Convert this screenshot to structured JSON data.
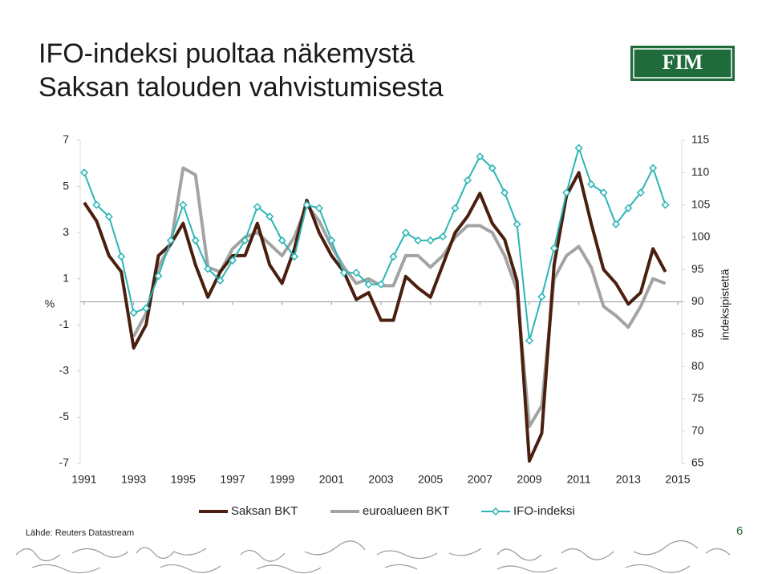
{
  "logo": "FIM",
  "source": "Lähde: Reuters Datastream",
  "page_number": "6",
  "chart_data": {
    "type": "line",
    "title": [
      "IFO-indeksi puoltaa näkemystä",
      "Saksan talouden vahvistumisesta"
    ],
    "y_label": "%",
    "y2_label": "indeksipistettä",
    "xlim": [
      1991,
      2015
    ],
    "xticks": [
      1991,
      1993,
      1995,
      1997,
      1999,
      2001,
      2003,
      2005,
      2007,
      2009,
      2011,
      2013,
      2015
    ],
    "ylim": [
      -7,
      7
    ],
    "yticks": [
      7,
      5,
      3,
      1,
      -1,
      -3,
      -5,
      -7
    ],
    "y2lim": [
      65,
      115
    ],
    "y2ticks": [
      115,
      110,
      105,
      100,
      95,
      90,
      85,
      80,
      75,
      70,
      65
    ],
    "x": [
      1991,
      1991.5,
      1992,
      1992.5,
      1993,
      1993.5,
      1994,
      1994.5,
      1995,
      1995.5,
      1996,
      1996.5,
      1997,
      1997.5,
      1998,
      1998.5,
      1999,
      1999.5,
      2000,
      2000.5,
      2001,
      2001.5,
      2002,
      2002.5,
      2003,
      2003.5,
      2004,
      2004.5,
      2005,
      2005.5,
      2006,
      2006.5,
      2007,
      2007.5,
      2008,
      2008.5,
      2009,
      2009.5,
      2010,
      2010.5,
      2011,
      2011.5,
      2012,
      2012.5,
      2013,
      2013.5,
      2014,
      2014.5
    ],
    "series": [
      {
        "name": "Saksan BKT",
        "color": "#4a1f0f",
        "axis": "y",
        "marker": false,
        "values": [
          4.3,
          3.5,
          2,
          1.3,
          -2,
          -1,
          2,
          2.5,
          3.4,
          1.6,
          0.2,
          1.3,
          2,
          2,
          3.4,
          1.6,
          0.8,
          2.3,
          4.4,
          3,
          2,
          1.3,
          0.1,
          0.4,
          -0.8,
          -0.8,
          1.1,
          0.6,
          0.2,
          1.6,
          3,
          3.7,
          4.7,
          3.4,
          2.7,
          0.9,
          -6.9,
          -5.7,
          1.6,
          4.6,
          5.6,
          3.4,
          1.4,
          0.8,
          -0.1,
          0.4,
          2.3,
          1.3
        ]
      },
      {
        "name": "euroalueen BKT",
        "color": "#a3a3a3",
        "axis": "y",
        "marker": false,
        "values": [
          null,
          null,
          null,
          null,
          -1.5,
          -0.5,
          1.5,
          2.5,
          5.8,
          5.5,
          1.5,
          1.3,
          2.3,
          2.8,
          3,
          2.5,
          2,
          2.8,
          4.2,
          3.5,
          2.4,
          1.5,
          0.8,
          1,
          0.7,
          0.7,
          2,
          2,
          1.5,
          2,
          2.8,
          3.3,
          3.3,
          3,
          2,
          0.5,
          -5.4,
          -4.5,
          1,
          2,
          2.4,
          1.5,
          -0.2,
          -0.6,
          -1.1,
          -0.2,
          1,
          0.8
        ]
      },
      {
        "name": "IFO-indeksi",
        "color": "#2bb5b5",
        "axis": "y2",
        "marker": true,
        "values": [
          110,
          105,
          103.2,
          97,
          88.3,
          89,
          94,
          99.5,
          105,
          99.5,
          95.1,
          93.3,
          96.4,
          99.5,
          104.7,
          103.2,
          99.5,
          97,
          105,
          104.5,
          99.5,
          94.5,
          94.5,
          92.7,
          92.7,
          97,
          100.7,
          99.5,
          99.5,
          100.1,
          104.5,
          108.8,
          112.5,
          110.7,
          106.9,
          102,
          84,
          90.8,
          98.3,
          106.9,
          113.8,
          108.2,
          106.9,
          102,
          104.5,
          106.9,
          110.7,
          105
        ]
      }
    ]
  }
}
